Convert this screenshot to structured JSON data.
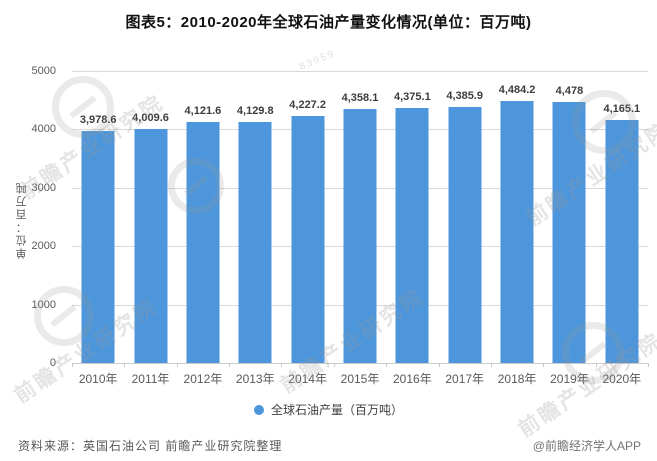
{
  "title": "图表5：2010-2020年全球石油产量变化情况(单位：百万吨)",
  "chart_data": {
    "type": "bar",
    "categories": [
      "2010年",
      "2011年",
      "2012年",
      "2013年",
      "2014年",
      "2015年",
      "2016年",
      "2017年",
      "2018年",
      "2019年",
      "2020年"
    ],
    "values": [
      3978.6,
      4009.6,
      4121.6,
      4129.8,
      4227.2,
      4358.1,
      4375.1,
      4385.9,
      4484.2,
      4478,
      4165.1
    ],
    "value_labels": [
      "3,978.6",
      "4,009.6",
      "4,121.6",
      "4,129.8",
      "4,227.2",
      "4,358.1",
      "4,375.1",
      "4,385.9",
      "4,484.2",
      "4,478",
      "4,165.1"
    ],
    "series_name": "全球石油产量（百万吨）",
    "xlabel": "",
    "ylabel": "单位：百万吨",
    "ylim": [
      0,
      5000
    ],
    "yticks": [
      0,
      1000,
      2000,
      3000,
      4000,
      5000
    ],
    "grid": true,
    "legend_position": "bottom",
    "bar_color": "#4d96db"
  },
  "legend": {
    "label": "全球石油产量（百万吨）",
    "marker": "circle"
  },
  "footer": {
    "source": "资料来源：英国石油公司 前瞻产业研究院整理",
    "credit": "@前瞻经济学人APP"
  },
  "watermark": {
    "text": "前瞻产业研究院",
    "digits": "83959"
  },
  "colors": {
    "bar": "#4d96db",
    "gridline": "#d9d9d9",
    "axis_text": "#595959",
    "title_text": "#111111",
    "value_label_text": "#3d3d3d"
  }
}
